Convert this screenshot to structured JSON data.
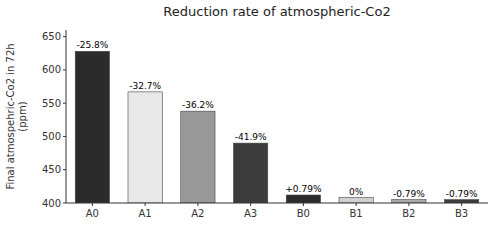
{
  "chart_data": {
    "type": "bar",
    "title": "Reduction rate of atmospheric-Co2",
    "ylabel": "Final atmospehric-Co2 in 72h\n(ppm)",
    "categories": [
      "A0",
      "A1",
      "A2",
      "A3",
      "B0",
      "B1",
      "B2",
      "B3"
    ],
    "values": [
      628,
      567,
      538,
      490,
      412,
      408,
      405,
      405
    ],
    "colors": [
      "#2b2b2b",
      "#e8e8e8",
      "#999999",
      "#3c3c3c",
      "#2b2b2b",
      "#d0d0d0",
      "#aaaaaa",
      "#3c3c3c"
    ],
    "annotations": [
      "-25.8%",
      "-32.7%",
      "-36.2%",
      "-41.9%",
      "+0.79%",
      "0%",
      "-0.79%",
      "-0.79%"
    ],
    "ylim": [
      400,
      660
    ],
    "yticks": [
      400,
      450,
      500,
      550,
      600,
      650
    ],
    "grid": false
  }
}
